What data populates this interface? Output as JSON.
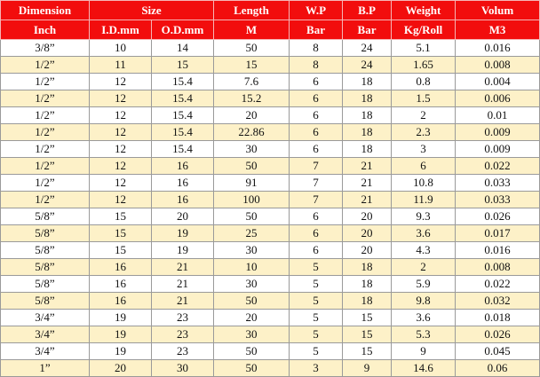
{
  "table": {
    "header": [
      [
        "Dimension",
        "Size",
        "Length",
        "W.P",
        "B.P",
        "Weight",
        "Volum"
      ],
      [
        "Inch",
        "I.D.mm",
        "O.D.mm",
        "M",
        "Bar",
        "Bar",
        "Kg/Roll",
        "M3"
      ]
    ],
    "rows": [
      [
        "3/8”",
        "10",
        "14",
        "50",
        "8",
        "24",
        "5.1",
        "0.016"
      ],
      [
        "1/2”",
        "11",
        "15",
        "15",
        "8",
        "24",
        "1.65",
        "0.008"
      ],
      [
        "1/2”",
        "12",
        "15.4",
        "7.6",
        "6",
        "18",
        "0.8",
        "0.004"
      ],
      [
        "1/2”",
        "12",
        "15.4",
        "15.2",
        "6",
        "18",
        "1.5",
        "0.006"
      ],
      [
        "1/2”",
        "12",
        "15.4",
        "20",
        "6",
        "18",
        "2",
        "0.01"
      ],
      [
        "1/2”",
        "12",
        "15.4",
        "22.86",
        "6",
        "18",
        "2.3",
        "0.009"
      ],
      [
        "1/2”",
        "12",
        "15.4",
        "30",
        "6",
        "18",
        "3",
        "0.009"
      ],
      [
        "1/2”",
        "12",
        "16",
        "50",
        "7",
        "21",
        "6",
        "0.022"
      ],
      [
        "1/2”",
        "12",
        "16",
        "91",
        "7",
        "21",
        "10.8",
        "0.033"
      ],
      [
        "1/2”",
        "12",
        "16",
        "100",
        "7",
        "21",
        "11.9",
        "0.033"
      ],
      [
        "5/8”",
        "15",
        "20",
        "50",
        "6",
        "20",
        "9.3",
        "0.026"
      ],
      [
        "5/8”",
        "15",
        "19",
        "25",
        "6",
        "20",
        "3.6",
        "0.017"
      ],
      [
        "5/8”",
        "15",
        "19",
        "30",
        "6",
        "20",
        "4.3",
        "0.016"
      ],
      [
        "5/8”",
        "16",
        "21",
        "10",
        "5",
        "18",
        "2",
        "0.008"
      ],
      [
        "5/8”",
        "16",
        "21",
        "30",
        "5",
        "18",
        "5.9",
        "0.022"
      ],
      [
        "5/8”",
        "16",
        "21",
        "50",
        "5",
        "18",
        "9.8",
        "0.032"
      ],
      [
        "3/4”",
        "19",
        "23",
        "20",
        "5",
        "15",
        "3.6",
        "0.018"
      ],
      [
        "3/4”",
        "19",
        "23",
        "30",
        "5",
        "15",
        "5.3",
        "0.026"
      ],
      [
        "3/4”",
        "19",
        "23",
        "50",
        "5",
        "15",
        "9",
        "0.045"
      ],
      [
        "1”",
        "20",
        "30",
        "50",
        "3",
        "9",
        "14.6",
        "0.06"
      ]
    ]
  }
}
